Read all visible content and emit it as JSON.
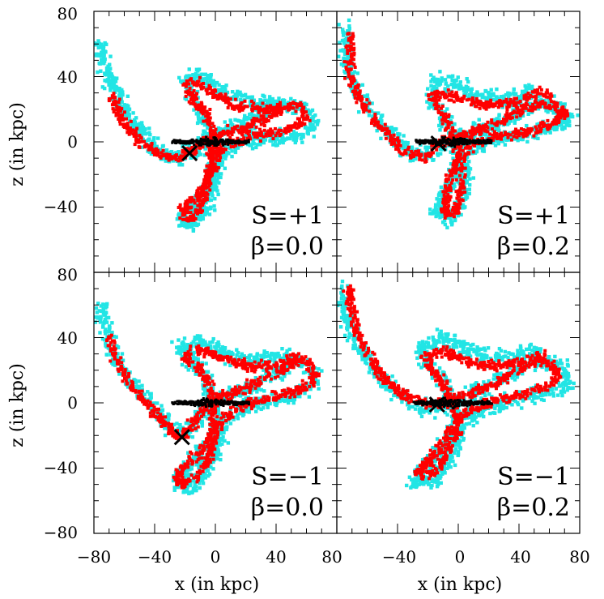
{
  "chart_data": {
    "type": "scatter",
    "layout": "2x2 grid, shared axes",
    "xlabel": "x (in kpc)",
    "ylabel": "z (in kpc)",
    "xlim": [
      -80,
      80
    ],
    "ylim": [
      -80,
      80
    ],
    "x_ticks": [
      -40,
      0,
      40
    ],
    "y_ticks": [
      -40,
      0,
      40
    ],
    "x_tick_labels_left": [
      "−80",
      "−40",
      "0",
      "40",
      "80"
    ],
    "x_tick_labels_right": [
      "−40",
      "0",
      "40",
      "80"
    ],
    "y_tick_labels_top": [
      "80",
      "40",
      "0",
      "−40"
    ],
    "y_tick_labels_bottom": [
      "80",
      "40",
      "0",
      "−40",
      "−80"
    ],
    "colors": {
      "cyan": "#22e5e5",
      "red": "#ff0000",
      "black": "#000000"
    },
    "series_legend": [
      {
        "name": "cyan particles",
        "color": "#22e5e5"
      },
      {
        "name": "red particles",
        "color": "#ff0000"
      },
      {
        "name": "black disc particles",
        "color": "#000000"
      },
      {
        "name": "satellite position",
        "marker": "x",
        "color": "#000000"
      }
    ],
    "panels": [
      {
        "id": "top-left",
        "S": "S=+1",
        "beta": "β=0.0",
        "satellite": [
          -17,
          -7
        ],
        "red_path": [
          [
            -68,
            28
          ],
          [
            -62,
            14
          ],
          [
            -52,
            2
          ],
          [
            -40,
            -6
          ],
          [
            -28,
            -10
          ],
          [
            -17,
            -7
          ],
          [
            -8,
            0
          ],
          [
            4,
            5
          ],
          [
            18,
            8
          ],
          [
            32,
            14
          ],
          [
            46,
            22
          ],
          [
            56,
            22
          ],
          [
            60,
            16
          ],
          [
            54,
            10
          ],
          [
            40,
            6
          ],
          [
            26,
            4
          ],
          [
            12,
            0
          ],
          [
            4,
            -4
          ],
          [
            0,
            -10
          ],
          [
            -2,
            -18
          ],
          [
            -6,
            -26
          ],
          [
            -12,
            -34
          ],
          [
            -20,
            -40
          ],
          [
            -22,
            -46
          ],
          [
            -16,
            -48
          ],
          [
            -10,
            -40
          ],
          [
            -6,
            -26
          ],
          [
            -2,
            -8
          ],
          [
            -2,
            6
          ],
          [
            -6,
            18
          ],
          [
            -14,
            26
          ],
          [
            -20,
            34
          ],
          [
            -16,
            38
          ],
          [
            -8,
            34
          ],
          [
            2,
            28
          ],
          [
            14,
            22
          ],
          [
            30,
            20
          ],
          [
            46,
            20
          ]
        ],
        "cyan_path": [
          [
            -76,
            60
          ],
          [
            -72,
            44
          ],
          [
            -66,
            30
          ],
          [
            -56,
            14
          ],
          [
            -44,
            0
          ],
          [
            -30,
            -10
          ],
          [
            -17,
            -7
          ],
          [
            -4,
            2
          ],
          [
            10,
            8
          ],
          [
            26,
            14
          ],
          [
            42,
            22
          ],
          [
            58,
            22
          ],
          [
            66,
            10
          ],
          [
            54,
            4
          ],
          [
            36,
            2
          ],
          [
            18,
            0
          ],
          [
            4,
            -8
          ],
          [
            -2,
            -22
          ],
          [
            -10,
            -36
          ],
          [
            -22,
            -44
          ],
          [
            -18,
            -52
          ],
          [
            -6,
            -42
          ],
          [
            0,
            -24
          ],
          [
            -2,
            -4
          ],
          [
            -8,
            16
          ],
          [
            -16,
            30
          ],
          [
            -20,
            38
          ],
          [
            -10,
            40
          ],
          [
            4,
            32
          ],
          [
            24,
            24
          ],
          [
            44,
            24
          ]
        ]
      },
      {
        "id": "top-right",
        "S": "S=+1",
        "beta": "β=0.2",
        "satellite": [
          -13,
          -1
        ],
        "red_path": [
          [
            -70,
            66
          ],
          [
            -72,
            50
          ],
          [
            -70,
            36
          ],
          [
            -62,
            22
          ],
          [
            -50,
            8
          ],
          [
            -36,
            -6
          ],
          [
            -22,
            -10
          ],
          [
            -13,
            -1
          ],
          [
            -4,
            2
          ],
          [
            10,
            6
          ],
          [
            26,
            12
          ],
          [
            42,
            20
          ],
          [
            56,
            24
          ],
          [
            72,
            18
          ],
          [
            60,
            10
          ],
          [
            44,
            6
          ],
          [
            28,
            4
          ],
          [
            12,
            0
          ],
          [
            4,
            -6
          ],
          [
            -2,
            -14
          ],
          [
            -6,
            -24
          ],
          [
            -8,
            -34
          ],
          [
            -10,
            -44
          ],
          [
            -2,
            -44
          ],
          [
            2,
            -30
          ],
          [
            2,
            -14
          ],
          [
            -2,
            2
          ],
          [
            -8,
            14
          ],
          [
            -14,
            22
          ],
          [
            -18,
            28
          ],
          [
            -10,
            30
          ],
          [
            2,
            26
          ],
          [
            18,
            22
          ],
          [
            36,
            24
          ],
          [
            52,
            30
          ],
          [
            62,
            28
          ]
        ],
        "cyan_path": [
          [
            -74,
            70
          ],
          [
            -74,
            52
          ],
          [
            -68,
            34
          ],
          [
            -58,
            18
          ],
          [
            -44,
            4
          ],
          [
            -30,
            -8
          ],
          [
            -14,
            -6
          ],
          [
            0,
            2
          ],
          [
            16,
            8
          ],
          [
            34,
            14
          ],
          [
            50,
            24
          ],
          [
            64,
            22
          ],
          [
            74,
            14
          ],
          [
            58,
            8
          ],
          [
            40,
            4
          ],
          [
            20,
            0
          ],
          [
            6,
            -8
          ],
          [
            -2,
            -20
          ],
          [
            -10,
            -34
          ],
          [
            -16,
            -44
          ],
          [
            -4,
            -48
          ],
          [
            4,
            -34
          ],
          [
            4,
            -16
          ],
          [
            -2,
            2
          ],
          [
            -10,
            16
          ],
          [
            -18,
            26
          ],
          [
            -14,
            38
          ],
          [
            -2,
            36
          ],
          [
            10,
            28
          ],
          [
            30,
            26
          ],
          [
            50,
            32
          ]
        ]
      },
      {
        "id": "bottom-left",
        "S": "S=−1",
        "beta": "β=0.0",
        "satellite": [
          -22,
          -21
        ],
        "red_path": [
          [
            -70,
            40
          ],
          [
            -66,
            28
          ],
          [
            -58,
            14
          ],
          [
            -48,
            2
          ],
          [
            -36,
            -10
          ],
          [
            -28,
            -18
          ],
          [
            -22,
            -21
          ],
          [
            -14,
            -12
          ],
          [
            -6,
            -2
          ],
          [
            4,
            4
          ],
          [
            18,
            8
          ],
          [
            32,
            14
          ],
          [
            46,
            22
          ],
          [
            60,
            26
          ],
          [
            66,
            14
          ],
          [
            56,
            8
          ],
          [
            40,
            4
          ],
          [
            24,
            0
          ],
          [
            10,
            -6
          ],
          [
            2,
            -14
          ],
          [
            -4,
            -22
          ],
          [
            -10,
            -30
          ],
          [
            -18,
            -38
          ],
          [
            -26,
            -44
          ],
          [
            -22,
            -50
          ],
          [
            -12,
            -46
          ],
          [
            -4,
            -34
          ],
          [
            0,
            -20
          ],
          [
            -2,
            -4
          ],
          [
            -4,
            12
          ],
          [
            -12,
            22
          ],
          [
            -20,
            28
          ],
          [
            -14,
            34
          ],
          [
            -4,
            30
          ],
          [
            8,
            26
          ],
          [
            24,
            22
          ],
          [
            42,
            24
          ],
          [
            56,
            28
          ]
        ],
        "cyan_path": [
          [
            -74,
            60
          ],
          [
            -72,
            44
          ],
          [
            -66,
            28
          ],
          [
            -56,
            14
          ],
          [
            -44,
            0
          ],
          [
            -32,
            -12
          ],
          [
            -20,
            -18
          ],
          [
            -8,
            -6
          ],
          [
            4,
            2
          ],
          [
            20,
            8
          ],
          [
            36,
            16
          ],
          [
            52,
            26
          ],
          [
            66,
            18
          ],
          [
            58,
            6
          ],
          [
            40,
            2
          ],
          [
            22,
            -2
          ],
          [
            8,
            -10
          ],
          [
            -2,
            -22
          ],
          [
            -12,
            -34
          ],
          [
            -26,
            -48
          ],
          [
            -16,
            -52
          ],
          [
            -4,
            -40
          ],
          [
            2,
            -22
          ],
          [
            0,
            -4
          ],
          [
            -6,
            14
          ],
          [
            -14,
            26
          ],
          [
            -24,
            34
          ],
          [
            -10,
            38
          ],
          [
            6,
            30
          ],
          [
            26,
            26
          ],
          [
            48,
            28
          ]
        ]
      },
      {
        "id": "bottom-right",
        "S": "S=−1",
        "beta": "β=0.2",
        "satellite": [
          -14,
          -1
        ],
        "red_path": [
          [
            -72,
            70
          ],
          [
            -70,
            54
          ],
          [
            -64,
            38
          ],
          [
            -56,
            24
          ],
          [
            -46,
            12
          ],
          [
            -34,
            4
          ],
          [
            -22,
            0
          ],
          [
            -14,
            -1
          ],
          [
            -4,
            2
          ],
          [
            10,
            6
          ],
          [
            24,
            12
          ],
          [
            40,
            20
          ],
          [
            52,
            26
          ],
          [
            62,
            24
          ],
          [
            66,
            14
          ],
          [
            52,
            8
          ],
          [
            36,
            4
          ],
          [
            20,
            0
          ],
          [
            8,
            -4
          ],
          [
            0,
            -10
          ],
          [
            -6,
            -20
          ],
          [
            -14,
            -30
          ],
          [
            -22,
            -38
          ],
          [
            -28,
            -42
          ],
          [
            -22,
            -46
          ],
          [
            -14,
            -40
          ],
          [
            -6,
            -30
          ],
          [
            0,
            -18
          ],
          [
            -2,
            -6
          ],
          [
            -6,
            4
          ],
          [
            -12,
            14
          ],
          [
            -18,
            22
          ],
          [
            -22,
            28
          ],
          [
            -12,
            32
          ],
          [
            -2,
            28
          ],
          [
            10,
            24
          ],
          [
            26,
            22
          ],
          [
            44,
            26
          ],
          [
            58,
            30
          ]
        ],
        "cyan_path": [
          [
            -76,
            72
          ],
          [
            -74,
            56
          ],
          [
            -68,
            40
          ],
          [
            -60,
            26
          ],
          [
            -50,
            14
          ],
          [
            -38,
            4
          ],
          [
            -24,
            -4
          ],
          [
            -10,
            -2
          ],
          [
            4,
            4
          ],
          [
            20,
            10
          ],
          [
            36,
            18
          ],
          [
            52,
            26
          ],
          [
            68,
            22
          ],
          [
            72,
            10
          ],
          [
            56,
            6
          ],
          [
            38,
            2
          ],
          [
            20,
            -2
          ],
          [
            8,
            -8
          ],
          [
            -2,
            -18
          ],
          [
            -12,
            -30
          ],
          [
            -24,
            -42
          ],
          [
            -30,
            -48
          ],
          [
            -16,
            -48
          ],
          [
            -6,
            -36
          ],
          [
            0,
            -20
          ],
          [
            -4,
            -2
          ],
          [
            -10,
            12
          ],
          [
            -20,
            24
          ],
          [
            -24,
            34
          ],
          [
            -12,
            40
          ],
          [
            2,
            34
          ],
          [
            18,
            28
          ],
          [
            36,
            28
          ],
          [
            54,
            32
          ]
        ]
      }
    ]
  }
}
